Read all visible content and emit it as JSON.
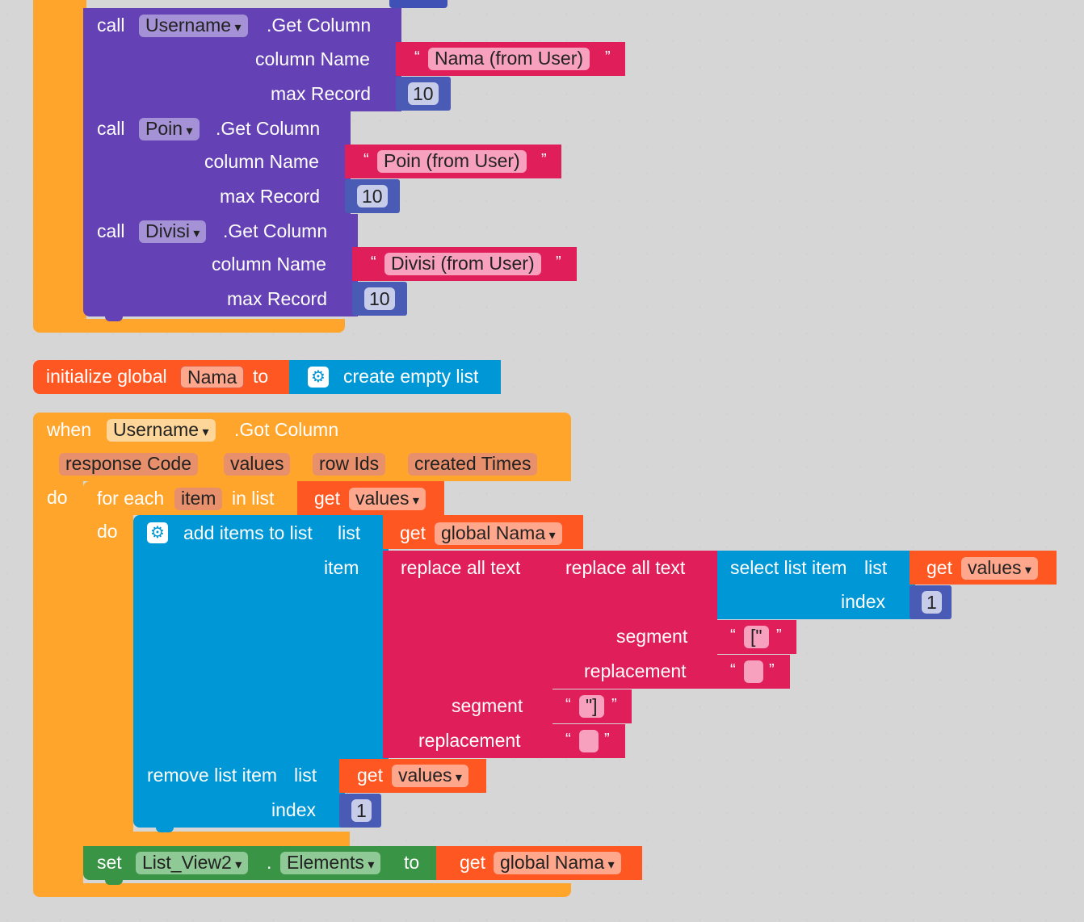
{
  "top_block": {
    "calls": [
      {
        "call": "call",
        "component": "Username",
        "method": ".Get Column",
        "column_label": "column Name",
        "column_value": "Nama (from User)",
        "max_label": "max Record",
        "max_value": "10"
      },
      {
        "call": "call",
        "component": "Poin",
        "method": ".Get Column",
        "column_label": "column Name",
        "column_value": "Poin (from User)",
        "max_label": "max Record",
        "max_value": "10"
      },
      {
        "call": "call",
        "component": "Divisi",
        "method": ".Get Column",
        "column_label": "column Name",
        "column_value": "Divisi (from User)",
        "max_label": "max Record",
        "max_value": "10"
      }
    ]
  },
  "init_global": {
    "label": "initialize global",
    "name": "Nama",
    "to": "to",
    "value": "create empty list"
  },
  "event": {
    "when": "when",
    "component": "Username",
    "event": ".Got Column",
    "params": [
      "response Code",
      "values",
      "row Ids",
      "created Times"
    ],
    "do": "do",
    "for_each": {
      "label": "for each",
      "var": "item",
      "in_list": "in list",
      "get": "get",
      "get_var": "values",
      "do": "do"
    },
    "add_items": {
      "label": "add items to list",
      "list_label": "list",
      "get": "get",
      "list_var": "global Nama",
      "item_label": "item"
    },
    "replace_outer": {
      "label": "replace all text",
      "segment_label": "segment",
      "segment_value": "\"]",
      "replacement_label": "replacement",
      "replacement_value": ""
    },
    "replace_inner": {
      "label": "replace all text",
      "segment_label": "segment",
      "segment_value": "[\"",
      "replacement_label": "replacement",
      "replacement_value": ""
    },
    "select_item": {
      "label": "select list item",
      "list_label": "list",
      "get": "get",
      "list_var": "values",
      "index_label": "index",
      "index_value": "1"
    },
    "remove_item": {
      "label": "remove list item",
      "list_label": "list",
      "get": "get",
      "list_var": "values",
      "index_label": "index",
      "index_value": "1"
    },
    "set": {
      "label": "set",
      "component": "List_View2",
      "dot": ".",
      "property": "Elements",
      "to": "to",
      "get": "get",
      "var": "global Nama"
    }
  },
  "colors": {
    "event": "#ffa52c",
    "call": "#6441b4",
    "text": "#e01e5a",
    "list": "#0097d6",
    "math": "#3f51b5",
    "variable": "#ff5722",
    "set": "#3a9445"
  },
  "quote_open": "“",
  "quote_close": "”"
}
